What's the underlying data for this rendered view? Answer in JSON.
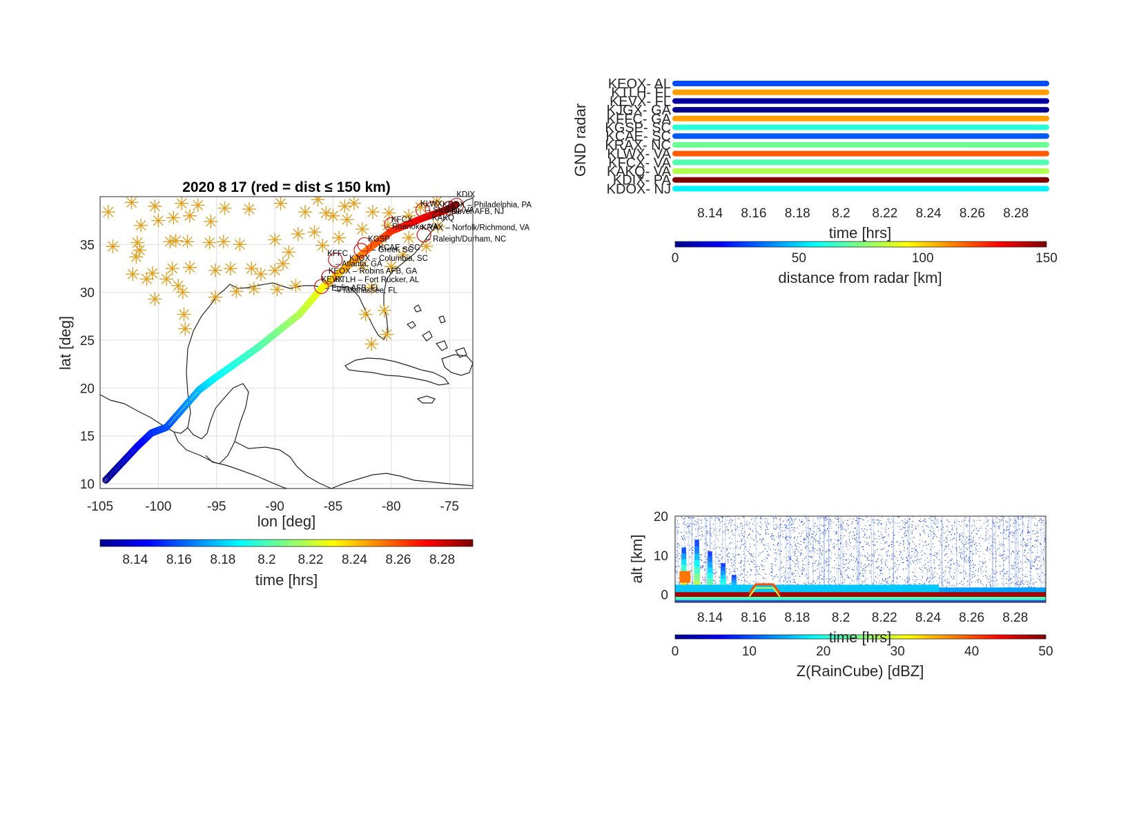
{
  "chart_data": [
    {
      "id": "track_map",
      "type": "scatter",
      "title": "2020    8    17  (red = dist ≤ 150 km)",
      "xlabel": "lon  [deg]",
      "ylabel": "lat  [deg]",
      "xlim": [
        -105,
        -73
      ],
      "ylim": [
        9.5,
        40
      ],
      "xticks": [
        "-105",
        "-100",
        "-95",
        "-90",
        "-85",
        "-80",
        "-75"
      ],
      "xtick_values": [
        -105,
        -100,
        -95,
        -90,
        -85,
        -80,
        -75
      ],
      "yticks": [
        "10",
        "15",
        "20",
        "25",
        "30",
        "35"
      ],
      "ytick_values": [
        10,
        15,
        20,
        25,
        30,
        35
      ],
      "grid": true,
      "colorbar": {
        "label": "time  [hrs]",
        "ticks": [
          "8.14",
          "8.16",
          "8.18",
          "8.2",
          "8.22",
          "8.24",
          "8.26",
          "8.28"
        ],
        "tick_values": [
          8.14,
          8.16,
          8.18,
          8.2,
          8.22,
          8.24,
          8.26,
          8.28
        ],
        "range": [
          8.124,
          8.294
        ]
      },
      "track": [
        {
          "lon": -104.5,
          "lat": 10.4,
          "t": 8.125
        },
        {
          "lon": -101.8,
          "lat": 13.9,
          "t": 8.142
        },
        {
          "lon": -100.6,
          "lat": 15.3,
          "t": 8.152
        },
        {
          "lon": -99.3,
          "lat": 15.9,
          "t": 8.158
        },
        {
          "lon": -96.5,
          "lat": 19.8,
          "t": 8.176
        },
        {
          "lon": -95.2,
          "lat": 21.0,
          "t": 8.186
        },
        {
          "lon": -91.5,
          "lat": 24.2,
          "t": 8.2
        },
        {
          "lon": -87.9,
          "lat": 27.7,
          "t": 8.217
        },
        {
          "lon": -86.0,
          "lat": 30.4,
          "t": 8.228
        },
        {
          "lon": -84.5,
          "lat": 32.0,
          "t": 8.24
        },
        {
          "lon": -82.2,
          "lat": 34.3,
          "t": 8.252
        },
        {
          "lon": -80.0,
          "lat": 36.4,
          "t": 8.264
        },
        {
          "lon": -77.2,
          "lat": 37.8,
          "t": 8.276
        },
        {
          "lon": -75.3,
          "lat": 38.6,
          "t": 8.288
        },
        {
          "lon": -74.4,
          "lat": 39.2,
          "t": 8.294
        }
      ],
      "radar_stations": [
        {
          "lon": -104.3,
          "lat": 38.4
        },
        {
          "lon": -102.3,
          "lat": 39.4
        },
        {
          "lon": -100.3,
          "lat": 39.0
        },
        {
          "lon": -98.0,
          "lat": 39.3
        },
        {
          "lon": -96.6,
          "lat": 39.1
        },
        {
          "lon": -94.3,
          "lat": 38.8
        },
        {
          "lon": -92.2,
          "lat": 38.7
        },
        {
          "lon": -89.5,
          "lat": 39.3
        },
        {
          "lon": -86.3,
          "lat": 39.7
        },
        {
          "lon": -83.2,
          "lat": 39.3
        },
        {
          "lon": -81.6,
          "lat": 38.4
        },
        {
          "lon": -85.6,
          "lat": 38.3
        },
        {
          "lon": -87.4,
          "lat": 38.4
        },
        {
          "lon": -85.0,
          "lat": 38.0
        },
        {
          "lon": -83.8,
          "lat": 37.6
        },
        {
          "lon": -97.3,
          "lat": 38.0
        },
        {
          "lon": -95.5,
          "lat": 37.4
        },
        {
          "lon": -98.7,
          "lat": 37.8
        },
        {
          "lon": -100.0,
          "lat": 37.5
        },
        {
          "lon": -101.5,
          "lat": 37.0
        },
        {
          "lon": -103.9,
          "lat": 34.8
        },
        {
          "lon": -101.8,
          "lat": 35.2
        },
        {
          "lon": -99.0,
          "lat": 35.3
        },
        {
          "lon": -98.5,
          "lat": 35.4
        },
        {
          "lon": -97.5,
          "lat": 35.3
        },
        {
          "lon": -95.6,
          "lat": 35.2
        },
        {
          "lon": -94.4,
          "lat": 35.3
        },
        {
          "lon": -93.0,
          "lat": 35.0
        },
        {
          "lon": -90.0,
          "lat": 35.5
        },
        {
          "lon": -88.0,
          "lat": 36.1
        },
        {
          "lon": -86.6,
          "lat": 36.3
        },
        {
          "lon": -84.5,
          "lat": 35.7
        },
        {
          "lon": -85.9,
          "lat": 34.9
        },
        {
          "lon": -88.8,
          "lat": 34.2
        },
        {
          "lon": -90.0,
          "lat": 32.3
        },
        {
          "lon": -92.0,
          "lat": 32.5
        },
        {
          "lon": -93.8,
          "lat": 32.5
        },
        {
          "lon": -95.1,
          "lat": 32.3
        },
        {
          "lon": -97.3,
          "lat": 32.6
        },
        {
          "lon": -98.8,
          "lat": 32.5
        },
        {
          "lon": -100.5,
          "lat": 32.0
        },
        {
          "lon": -101.9,
          "lat": 33.7
        },
        {
          "lon": -101.6,
          "lat": 34.4
        },
        {
          "lon": -102.2,
          "lat": 31.9
        },
        {
          "lon": -101.0,
          "lat": 31.4
        },
        {
          "lon": -99.3,
          "lat": 31.4
        },
        {
          "lon": -98.3,
          "lat": 30.7
        },
        {
          "lon": -97.9,
          "lat": 30.0
        },
        {
          "lon": -100.3,
          "lat": 29.3
        },
        {
          "lon": -95.1,
          "lat": 29.5
        },
        {
          "lon": -93.3,
          "lat": 30.1
        },
        {
          "lon": -91.8,
          "lat": 30.4
        },
        {
          "lon": -89.8,
          "lat": 30.3
        },
        {
          "lon": -88.2,
          "lat": 30.7
        },
        {
          "lon": -91.2,
          "lat": 31.9
        },
        {
          "lon": -89.3,
          "lat": 33.0
        },
        {
          "lon": -97.8,
          "lat": 27.7
        },
        {
          "lon": -97.7,
          "lat": 26.2
        },
        {
          "lon": -82.2,
          "lat": 27.7
        },
        {
          "lon": -80.6,
          "lat": 28.1
        },
        {
          "lon": -80.4,
          "lat": 25.6
        },
        {
          "lon": -81.7,
          "lat": 24.6
        },
        {
          "lon": -81.7,
          "lat": 30.5
        },
        {
          "lon": -82.5,
          "lat": 32.8
        },
        {
          "lon": -80.0,
          "lat": 32.7
        },
        {
          "lon": -79.0,
          "lat": 33.9
        },
        {
          "lon": -77.0,
          "lat": 34.8
        },
        {
          "lon": -78.5,
          "lat": 35.7
        },
        {
          "lon": -76.0,
          "lat": 36.9
        },
        {
          "lon": -81.0,
          "lat": 35.3
        },
        {
          "lon": -82.5,
          "lat": 36.6
        },
        {
          "lon": -80.3,
          "lat": 37.0
        },
        {
          "lon": -78.5,
          "lat": 38.0
        },
        {
          "lon": -77.5,
          "lat": 38.9
        },
        {
          "lon": -76.1,
          "lat": 39.5
        },
        {
          "lon": -80.2,
          "lat": 38.3
        },
        {
          "lon": -84.0,
          "lat": 39.0
        }
      ],
      "site_labels": [
        {
          "code": "KDIX",
          "name": "",
          "lon": -74.4,
          "lat": 39.95
        },
        {
          "code": "KLWX",
          "name": "",
          "lon": -77.5,
          "lat": 38.98
        },
        {
          "code": "KDOX",
          "name": "– Philadelphia, PA",
          "lon": -75.6,
          "lat": 38.9
        },
        {
          "code": "",
          "name": "– Sterling, VA",
          "lon": -77.0,
          "lat": 38.35
        },
        {
          "code": "",
          "name": "– Dover AFB, NJ",
          "lon": -75.4,
          "lat": 38.2
        },
        {
          "code": "KAKQ",
          "name": "",
          "lon": -76.5,
          "lat": 37.5
        },
        {
          "code": "KFCX",
          "name": "",
          "lon": -80.0,
          "lat": 37.35
        },
        {
          "code": "KRAX",
          "name": "– Norfolk/Richmond, VA",
          "lon": -77.4,
          "lat": 36.5
        },
        {
          "code": "",
          "name": "– Roanoke, VA",
          "lon": -80.5,
          "lat": 36.6
        },
        {
          "code": "",
          "name": "– Raleigh/Durham, NC",
          "lon": -77.0,
          "lat": 35.3
        },
        {
          "code": "KGSP",
          "name": "",
          "lon": -82.0,
          "lat": 35.3
        },
        {
          "code": "KCAE",
          "name": "– SC",
          "lon": -81.1,
          "lat": 34.4
        },
        {
          "code": "",
          "name": "– Greer, SC",
          "lon": -81.7,
          "lat": 34.2
        },
        {
          "code": "KFFC",
          "name": "",
          "lon": -85.5,
          "lat": 33.8
        },
        {
          "code": "KJGX",
          "name": "– Columbia, SC",
          "lon": -83.6,
          "lat": 33.3
        },
        {
          "code": "",
          "name": "– Atlanta, GA",
          "lon": -84.8,
          "lat": 32.7
        },
        {
          "code": "KEOX",
          "name": "– Robins AFB, GA",
          "lon": -85.4,
          "lat": 31.95
        },
        {
          "code": "KEVX",
          "name": "",
          "lon": -86.0,
          "lat": 31.1
        },
        {
          "code": "KTLH",
          "name": "– Fort Rucker, AL",
          "lon": -84.8,
          "lat": 31.05
        },
        {
          "code": "",
          "name": "– Eglin AFB, FL",
          "lon": -85.7,
          "lat": 30.2
        },
        {
          "code": "",
          "name": "– Tallahassee, FL",
          "lon": -84.8,
          "lat": 29.95
        }
      ]
    },
    {
      "id": "radar_distance",
      "type": "scatter",
      "title": "",
      "xlabel": "time [hrs]",
      "ylabel": "GND radar",
      "xlim": [
        8.124,
        8.294
      ],
      "xticks": [
        "8.14",
        "8.16",
        "8.18",
        "8.2",
        "8.22",
        "8.24",
        "8.26",
        "8.28"
      ],
      "xtick_values": [
        8.14,
        8.16,
        8.18,
        8.2,
        8.22,
        8.24,
        8.26,
        8.28
      ],
      "categories": [
        "KEOX-  AL",
        "KTLH-  FL",
        "KEVX-  FL",
        "KJGX-  GA",
        "KFFC-  GA",
        "KGSP-  SC",
        "KCAE-  SC",
        "KRAX-  NC",
        "KLWX-  VA",
        "KFCX-  VA",
        "KAKQ-  VA",
        "KDIX-  PA",
        "KDOX-  NJ"
      ],
      "distance_km": [
        30,
        108,
        5,
        2,
        108,
        62,
        32,
        72,
        118,
        68,
        82,
        150,
        55
      ],
      "colorbar": {
        "label": "distance from radar [km]",
        "ticks": [
          "0",
          "50",
          "100",
          "150"
        ],
        "tick_values": [
          0,
          50,
          100,
          150
        ],
        "range": [
          0,
          150
        ]
      }
    },
    {
      "id": "raincube_curtain",
      "type": "heatmap",
      "title": "",
      "xlabel": "time [hrs]",
      "ylabel": "alt [km]",
      "xlim": [
        8.124,
        8.294
      ],
      "ylim": [
        -2,
        20
      ],
      "xticks": [
        "8.14",
        "8.16",
        "8.18",
        "8.2",
        "8.22",
        "8.24",
        "8.26",
        "8.28"
      ],
      "xtick_values": [
        8.14,
        8.16,
        8.18,
        8.2,
        8.22,
        8.24,
        8.26,
        8.28
      ],
      "yticks": [
        "0",
        "10",
        "20"
      ],
      "ytick_values": [
        0,
        10,
        20
      ],
      "colorbar": {
        "label": "Z(RainCube) [dBZ]",
        "ticks": [
          "0",
          "10",
          "20",
          "30",
          "40",
          "50"
        ],
        "tick_values": [
          0,
          10,
          20,
          30,
          40,
          50
        ],
        "range": [
          0,
          50
        ]
      },
      "convective_cells": [
        {
          "t": 8.128,
          "top_km": 12,
          "peak_dbz": 30
        },
        {
          "t": 8.134,
          "top_km": 14,
          "peak_dbz": 25
        },
        {
          "t": 8.14,
          "top_km": 11,
          "peak_dbz": 22
        },
        {
          "t": 8.146,
          "top_km": 8,
          "peak_dbz": 20
        },
        {
          "t": 8.151,
          "top_km": 5,
          "peak_dbz": 18
        }
      ],
      "surface_echo_dbz": 48,
      "elevated_echo": {
        "t_start": 8.158,
        "t_end": 8.172,
        "alt_km": 2,
        "dbz": 40
      }
    }
  ]
}
